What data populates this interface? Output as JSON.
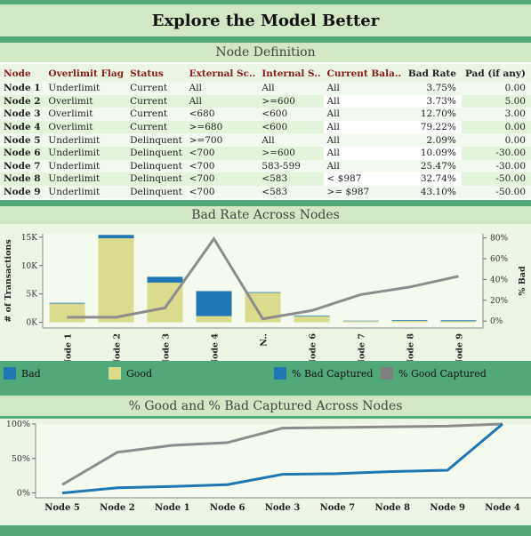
{
  "title": "Explore the Model Better",
  "node_definition": {
    "header": "Node Definition",
    "columns": [
      "Node",
      "Overlimit Flag",
      "Status",
      "External Sc..",
      "Internal S..",
      "Current Bala..",
      "Bad Rate",
      "Pad (if any)"
    ],
    "rows": [
      [
        "Node 1",
        "Underlimit",
        "Current",
        "All",
        "All",
        "All",
        "3.75%",
        "0.00"
      ],
      [
        "Node 2",
        "Overlimit",
        "Current",
        "All",
        ">=600",
        "All",
        "3.73%",
        "5.00"
      ],
      [
        "Node 3",
        "Overlimit",
        "Current",
        "<680",
        "<600",
        "All",
        "12.70%",
        "3.00"
      ],
      [
        "Node 4",
        "Overlimit",
        "Current",
        ">=680",
        "<600",
        "All",
        "79.22%",
        "0.00"
      ],
      [
        "Node 5",
        "Underlimit",
        "Delinquent",
        ">=700",
        "All",
        "All",
        "2.09%",
        "0.00"
      ],
      [
        "Node 6",
        "Underlimit",
        "Delinquent",
        "<700",
        ">=600",
        "All",
        "10.09%",
        "-30.00"
      ],
      [
        "Node 7",
        "Underlimit",
        "Delinquent",
        "<700",
        "583-599",
        "All",
        "25.47%",
        "-30.00"
      ],
      [
        "Node 8",
        "Underlimit",
        "Delinquent",
        "<700",
        "<583",
        "< $987",
        "32.74%",
        "-50.00"
      ],
      [
        "Node 9",
        "Underlimit",
        "Delinquent",
        "<700",
        "<583",
        ">= $987",
        "43.10%",
        "-50.00"
      ]
    ]
  },
  "bad_rate_section": {
    "header": "Bad Rate Across Nodes"
  },
  "captured_section": {
    "header": "% Good and % Bad Captured Across Nodes"
  },
  "legend": {
    "items": [
      {
        "label": "Bad",
        "color": "#1f77b4"
      },
      {
        "label": "Good",
        "color": "#dbdb8d"
      },
      {
        "label": "% Bad Captured",
        "color": "#1f77b4"
      },
      {
        "label": "% Good Captured",
        "color": "#7f7f7f"
      }
    ]
  },
  "colors": {
    "bad": "#1f77b4",
    "good": "#dbdb8d",
    "good_line": "#8c8c8c",
    "bad_line": "#1f77b4",
    "band": "#52a878",
    "header_bg": "#d2e8c4",
    "panel_bg": "#ecf6e5"
  },
  "chart_data": [
    {
      "type": "bar",
      "categories": [
        "Node 1",
        "Node 2",
        "Node 3",
        "Node 4",
        "N..",
        "Node 6",
        "Node 7",
        "Node 8",
        "Node 9"
      ],
      "series": [
        {
          "name": "Good",
          "values": [
            3300,
            14800,
            7000,
            1100,
            5200,
            1050,
            220,
            270,
            210
          ]
        },
        {
          "name": "Bad",
          "values": [
            130,
            600,
            1020,
            4400,
            120,
            120,
            70,
            130,
            160
          ]
        },
        {
          "name": "Bad Rate",
          "axis": "right",
          "values": [
            0.0375,
            0.0373,
            0.127,
            0.7922,
            0.0209,
            0.1009,
            0.2547,
            0.3274,
            0.431
          ]
        }
      ],
      "ylabel": "# of Transactions",
      "y2label": "% Bad",
      "yticks": [
        "0K",
        "5K",
        "10K",
        "15K"
      ],
      "ylim": [
        -1000,
        15600
      ],
      "y2ticks": [
        "0%",
        "20%",
        "40%",
        "60%",
        "80%"
      ],
      "y2lim": [
        -0.0667,
        0.84
      ]
    },
    {
      "type": "line",
      "categories": [
        "Node 5",
        "Node 2",
        "Node 1",
        "Node 6",
        "Node 3",
        "Node 7",
        "Node 8",
        "Node 9",
        "Node 4"
      ],
      "series": [
        {
          "name": "% Good Captured",
          "values": [
            0.12,
            0.59,
            0.69,
            0.73,
            0.94,
            0.95,
            0.96,
            0.97,
            1.0
          ]
        },
        {
          "name": "% Bad Captured",
          "values": [
            0.0,
            0.075,
            0.095,
            0.12,
            0.27,
            0.28,
            0.31,
            0.33,
            1.0
          ]
        }
      ],
      "yticks": [
        "0%",
        "50%",
        "100%"
      ],
      "ylim": [
        -0.07,
        1.0
      ]
    }
  ]
}
